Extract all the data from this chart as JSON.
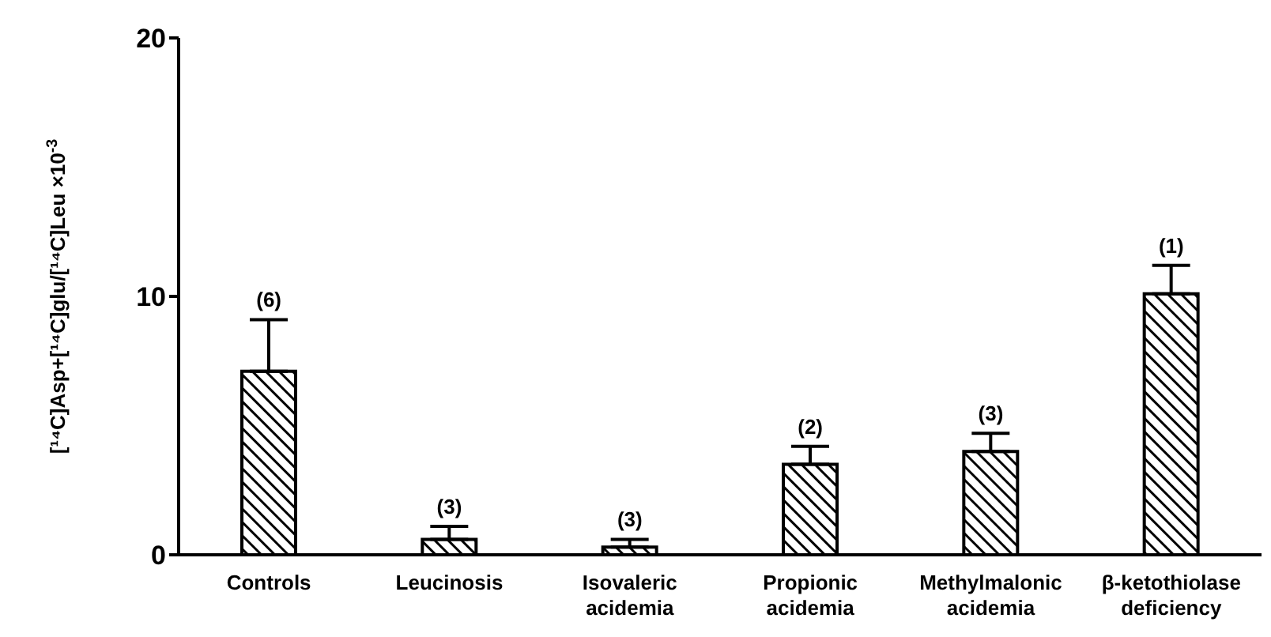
{
  "chart_data": {
    "type": "bar",
    "ylabel": "[¹⁴C]Asp+[¹⁴C]glu/[¹⁴C]Leu ×10$^{-3}$",
    "categories": [
      "Controls",
      "Leucinosis",
      "Isovaleric acidemia",
      "Propionic acidemia",
      "Methylmalonic acidemia",
      "β-ketothiolase deficiency"
    ],
    "values": [
      7.1,
      0.6,
      0.3,
      3.5,
      4.0,
      10.1
    ],
    "errors": [
      [
        7.1,
        9.1
      ],
      [
        0.6,
        1.1
      ],
      [
        0.3,
        0.6
      ],
      [
        3.5,
        4.2
      ],
      [
        4.0,
        4.7
      ],
      [
        10.1,
        11.2
      ]
    ],
    "color": "#000000",
    "ylim": [
      0,
      20
    ],
    "yticks": [
      0,
      10,
      20
    ],
    "grid": false,
    "legend": false,
    "annotations": [
      {
        "text": "(6)",
        "x": "Controls",
        "y": 9.1
      },
      {
        "text": "(3)",
        "x": "Leucinosis",
        "y": 1.1
      },
      {
        "text": "(3)",
        "x": "Isovaleric acidemia",
        "y": 0.6
      },
      {
        "text": "(2)",
        "x": "Propionic acidemia",
        "y": 4.2
      },
      {
        "text": "(3)",
        "x": "Methylmalonic acidemia",
        "y": 4.7
      },
      {
        "text": "(1)",
        "x": "β-ketothiolase deficiency",
        "y": 11.2
      }
    ]
  }
}
